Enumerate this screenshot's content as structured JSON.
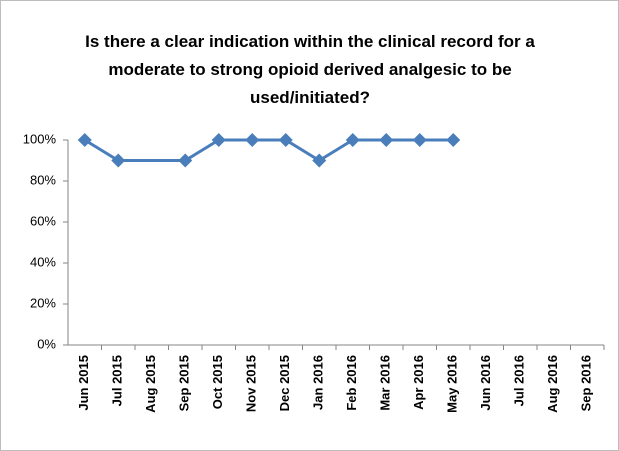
{
  "chart_data": {
    "type": "line",
    "title": "Is there a clear indication within the clinical record for a moderate to strong opioid derived analgesic to be used/initiated?",
    "categories": [
      "Jun 2015",
      "Jul 2015",
      "Aug 2015",
      "Sep 2015",
      "Oct 2015",
      "Nov 2015",
      "Dec 2015",
      "Jan 2016",
      "Feb 2016",
      "Mar 2016",
      "Apr 2016",
      "May 2016",
      "Jun 2016",
      "Jul 2016",
      "Aug 2016",
      "Sep 2016"
    ],
    "series": [
      {
        "color": "#4a7ebb",
        "values": [
          100,
          90,
          null,
          90,
          100,
          100,
          100,
          90,
          100,
          100,
          100,
          100,
          null,
          null,
          null,
          null
        ]
      }
    ],
    "span_gaps": true,
    "ylim": [
      0,
      100
    ],
    "yticks": [
      {
        "value": 0,
        "label": "0%"
      },
      {
        "value": 20,
        "label": "20%"
      },
      {
        "value": 40,
        "label": "40%"
      },
      {
        "value": 60,
        "label": "60%"
      },
      {
        "value": 80,
        "label": "80%"
      },
      {
        "value": 100,
        "label": "100%"
      }
    ],
    "grid": false
  }
}
